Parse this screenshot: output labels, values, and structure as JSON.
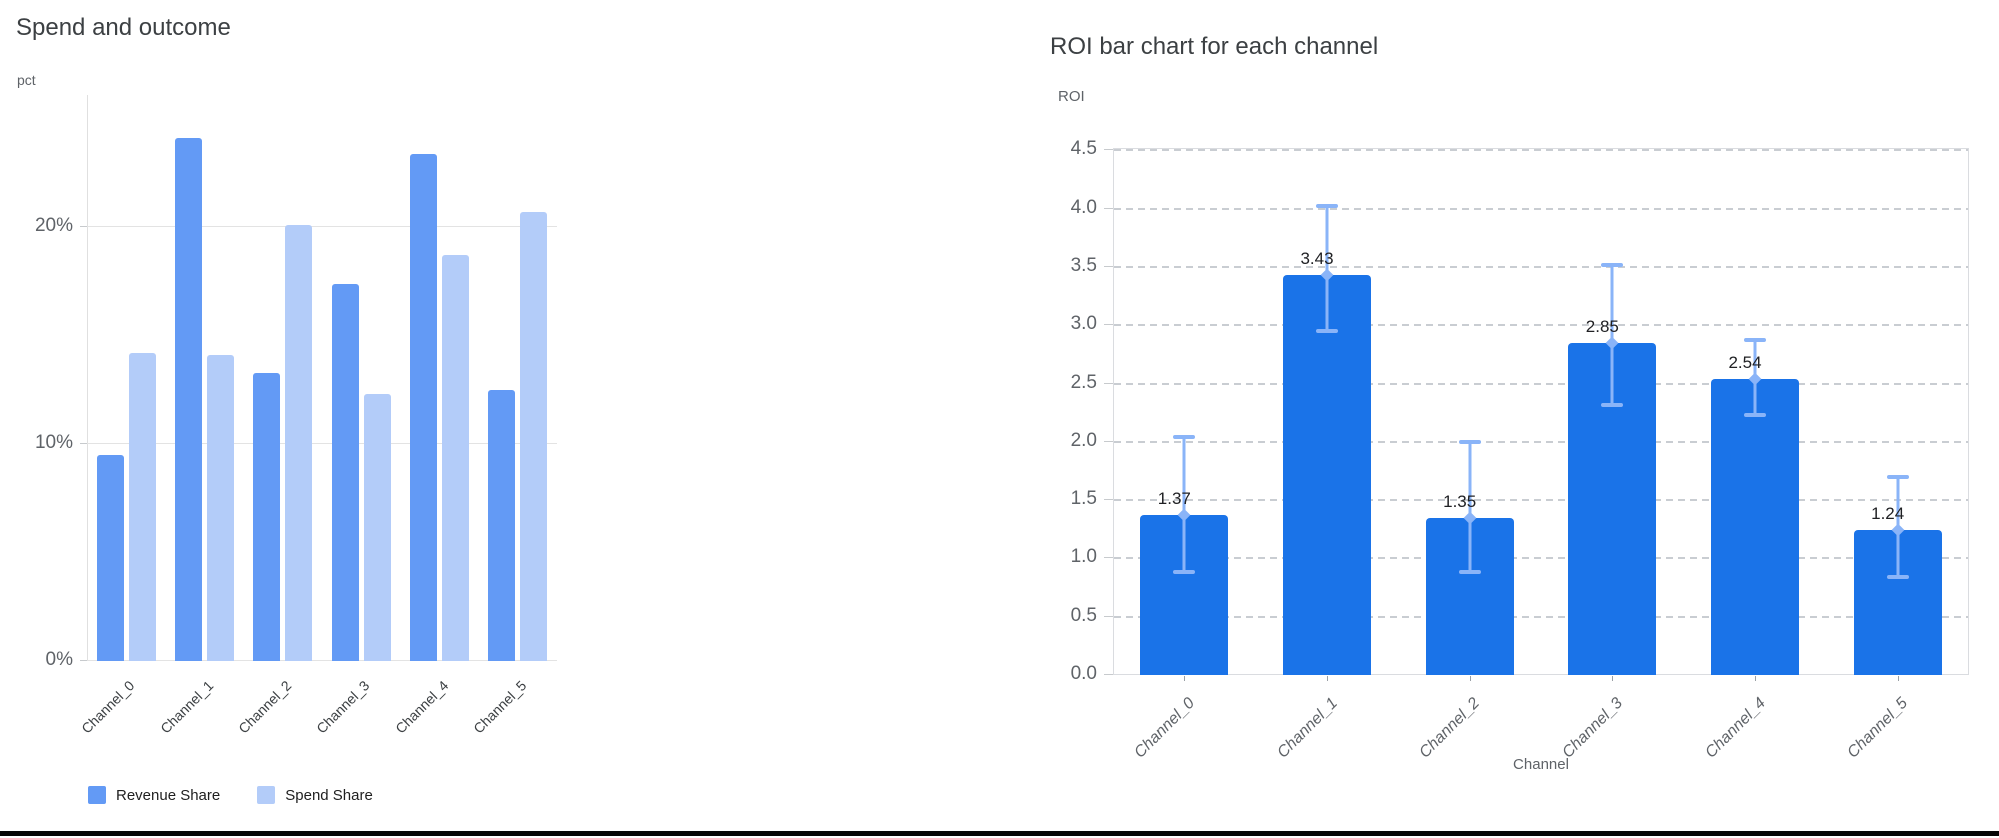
{
  "colors": {
    "title": "#3c4043",
    "axis_label": "#5f6368",
    "grid_solid": "#e3e3e3",
    "grid_dashed": "#c9cdd2",
    "revenue_bar": "#639af5",
    "spend_bar": "#b3ccf9",
    "roi_bar": "#1a73e8",
    "error_bar": "#8ab4f8",
    "value_label": "#202124",
    "bottom_border": "#060606"
  },
  "chart_data": [
    {
      "id": "spend_outcome",
      "type": "bar",
      "title": "Spend and outcome",
      "ylabel": "pct",
      "categories": [
        "Channel_0",
        "Channel_1",
        "Channel_2",
        "Channel_3",
        "Channel_4",
        "Channel_5"
      ],
      "series": [
        {
          "name": "Revenue Share",
          "color": "#639af5",
          "values": [
            9.5,
            24.1,
            13.3,
            17.4,
            23.4,
            12.5
          ]
        },
        {
          "name": "Spend Share",
          "color": "#b3ccf9",
          "values": [
            14.2,
            14.1,
            20.1,
            12.3,
            18.7,
            20.7
          ]
        }
      ],
      "y_ticks": [
        {
          "value": 0,
          "label": "0%"
        },
        {
          "value": 10,
          "label": "10%"
        },
        {
          "value": 20,
          "label": "20%"
        }
      ],
      "ylim": [
        0,
        26.1
      ],
      "grid": "solid",
      "legend_position": "bottom"
    },
    {
      "id": "roi_by_channel",
      "type": "bar",
      "title": "ROI bar chart for each channel",
      "ylabel": "ROI",
      "xlabel": "Channel",
      "categories": [
        "Channel_0",
        "Channel_1",
        "Channel_2",
        "Channel_3",
        "Channel_4",
        "Channel_5"
      ],
      "values": [
        1.37,
        3.43,
        1.35,
        2.85,
        2.54,
        1.24
      ],
      "value_labels": [
        "1.37",
        "3.43",
        "1.35",
        "2.85",
        "2.54",
        "1.24"
      ],
      "error_low": [
        0.88,
        2.95,
        0.88,
        2.32,
        2.23,
        0.84
      ],
      "error_high": [
        2.04,
        4.02,
        2.0,
        3.52,
        2.87,
        1.7
      ],
      "y_ticks": [
        {
          "value": 0.0,
          "label": "0.0"
        },
        {
          "value": 0.5,
          "label": "0.5"
        },
        {
          "value": 1.0,
          "label": "1.0"
        },
        {
          "value": 1.5,
          "label": "1.5"
        },
        {
          "value": 2.0,
          "label": "2.0"
        },
        {
          "value": 2.5,
          "label": "2.5"
        },
        {
          "value": 3.0,
          "label": "3.0"
        },
        {
          "value": 3.5,
          "label": "3.5"
        },
        {
          "value": 4.0,
          "label": "4.0"
        },
        {
          "value": 4.5,
          "label": "4.5"
        }
      ],
      "ylim": [
        0,
        4.52
      ],
      "grid": "dashed",
      "bar_color": "#1a73e8",
      "error_bar_color": "#8ab4f8"
    }
  ]
}
